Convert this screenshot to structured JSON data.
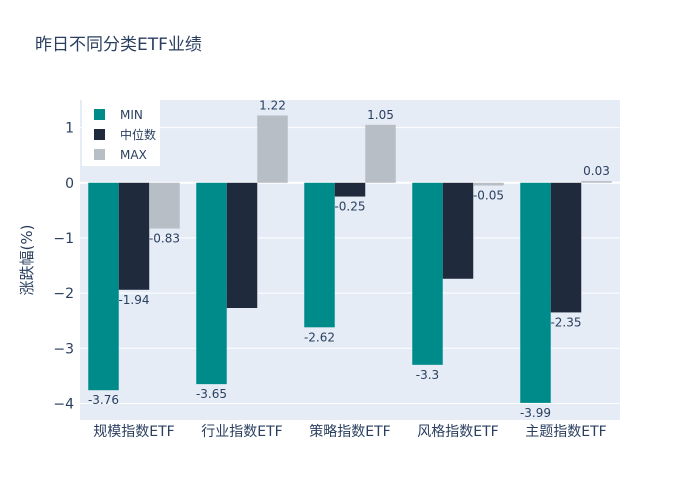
{
  "chart_data": {
    "type": "bar",
    "title": "昨日不同分类ETF业绩",
    "xlabel": "",
    "ylabel": "涨跌幅(%)",
    "categories": [
      "规模指数ETF",
      "行业指数ETF",
      "策略指数ETF",
      "风格指数ETF",
      "主题指数ETF"
    ],
    "series": [
      {
        "name": "MIN",
        "values": [
          -3.76,
          -3.65,
          -2.62,
          -3.3,
          -3.99
        ],
        "labels": [
          "-3.76",
          "-3.65",
          "-2.62",
          "-3.3",
          "-3.99"
        ],
        "color": "#008b8b"
      },
      {
        "name": "中位数",
        "values": [
          -1.94,
          -2.27,
          -0.25,
          -1.74,
          -2.35
        ],
        "labels": [
          "-1.94",
          "",
          "-0.25",
          "",
          "-2.35"
        ],
        "color": "#1f2a3c"
      },
      {
        "name": "MAX",
        "values": [
          -0.83,
          1.22,
          1.05,
          -0.05,
          0.03
        ],
        "labels": [
          "-0.83",
          "1.22",
          "1.05",
          "-0.05",
          "0.03"
        ],
        "color": "#b8bec6"
      }
    ],
    "ylim": [
      -4.3,
      1.5
    ],
    "yticks": [
      1,
      0,
      -1,
      -2,
      -3,
      -4
    ],
    "ytick_labels": [
      "1",
      "0",
      "−1",
      "−2",
      "−3",
      "−4"
    ],
    "grid": true,
    "legend_position": "top-left",
    "plot_background": "#e5ecf6"
  }
}
